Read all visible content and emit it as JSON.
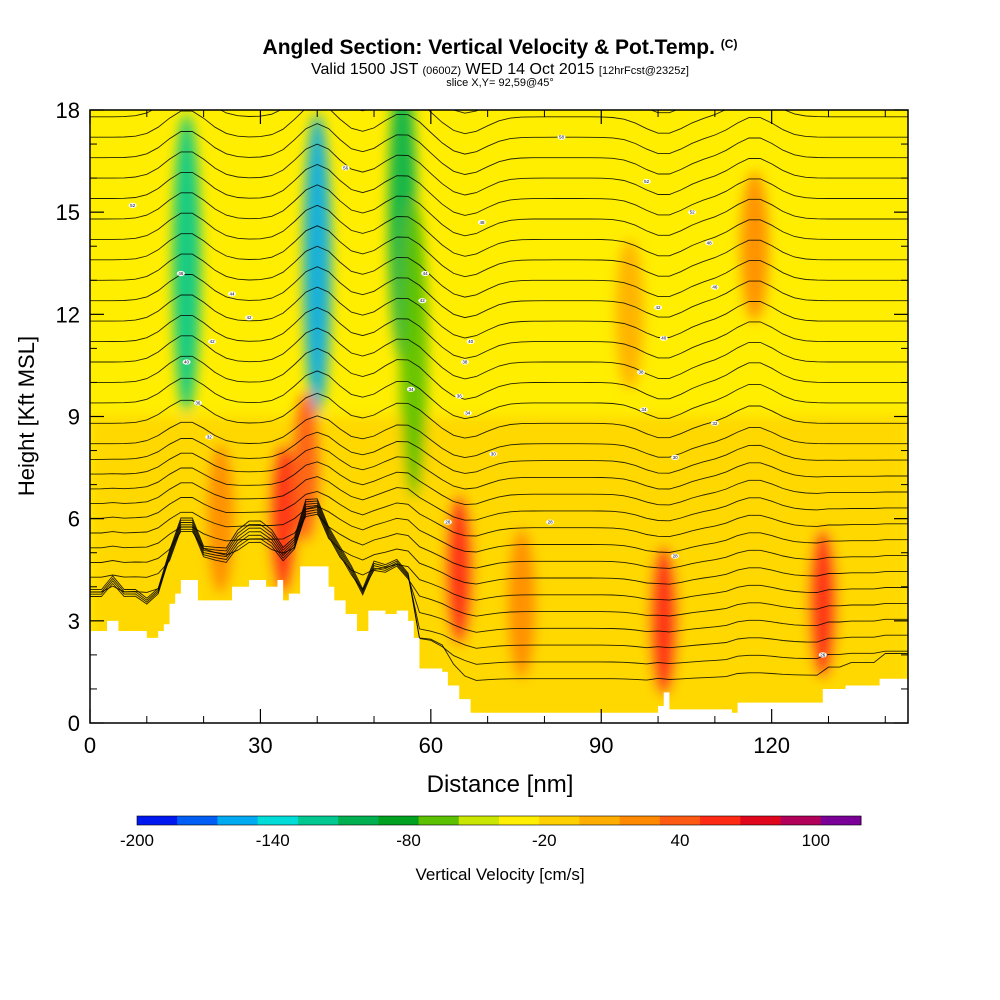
{
  "header": {
    "title": "Angled Section: Vertical Velocity & Pot.Temp.",
    "title_units": "(C)",
    "valid_a": "Valid 1500 JST",
    "valid_z": "(0600Z)",
    "valid_b": "WED 14 Oct 2015",
    "forecast": "[12hrFcst@2325z]",
    "slice": "slice X,Y= 92,59@45°"
  },
  "chart_data": {
    "type": "heatmap",
    "title": "Angled Section: Vertical Velocity & Pot.Temp.",
    "xlabel": "Distance [nm]",
    "ylabel": "Height [Kft MSL]",
    "xlim": [
      0,
      144
    ],
    "ylim": [
      0,
      18
    ],
    "x_ticks": [
      "0",
      "30",
      "60",
      "90",
      "120"
    ],
    "x_tick_values": [
      0,
      30,
      60,
      90,
      120
    ],
    "y_ticks": [
      "0",
      "3",
      "6",
      "9",
      "12",
      "15",
      "18"
    ],
    "y_tick_values": [
      0,
      3,
      6,
      9,
      12,
      15,
      18
    ],
    "terrain_kft": [
      [
        0,
        2.7
      ],
      [
        3,
        3.0
      ],
      [
        5,
        2.7
      ],
      [
        8,
        2.7
      ],
      [
        10,
        2.5
      ],
      [
        12,
        2.7
      ],
      [
        13,
        2.9
      ],
      [
        14,
        3.5
      ],
      [
        15,
        3.8
      ],
      [
        16,
        4.2
      ],
      [
        18,
        4.2
      ],
      [
        19,
        3.6
      ],
      [
        23,
        3.6
      ],
      [
        25,
        4.0
      ],
      [
        28,
        4.2
      ],
      [
        31,
        4.0
      ],
      [
        33,
        4.2
      ],
      [
        34,
        3.6
      ],
      [
        35,
        3.8
      ],
      [
        37,
        4.6
      ],
      [
        41,
        4.6
      ],
      [
        42,
        4.0
      ],
      [
        43,
        3.6
      ],
      [
        45,
        3.2
      ],
      [
        47,
        2.7
      ],
      [
        49,
        3.3
      ],
      [
        52,
        3.2
      ],
      [
        54,
        3.3
      ],
      [
        56,
        3.0
      ],
      [
        57,
        2.5
      ],
      [
        58,
        1.6
      ],
      [
        62,
        1.5
      ],
      [
        63,
        1.1
      ],
      [
        65,
        0.7
      ],
      [
        67,
        0.3
      ],
      [
        85,
        0.3
      ],
      [
        99,
        0.3
      ],
      [
        100,
        0.5
      ],
      [
        101,
        0.9
      ],
      [
        102,
        0.4
      ],
      [
        113,
        0.3
      ],
      [
        114,
        0.6
      ],
      [
        128,
        0.6
      ],
      [
        129,
        1.0
      ],
      [
        133,
        1.1
      ],
      [
        138,
        1.1
      ],
      [
        139,
        1.3
      ],
      [
        144,
        1.3
      ]
    ],
    "w_cells": [
      {
        "x": 17,
        "y": 13.5,
        "w": -110
      },
      {
        "x": 40,
        "y": 13.5,
        "w": -160
      },
      {
        "x": 55,
        "y": 15.0,
        "w": -90
      },
      {
        "x": 57,
        "y": 11.0,
        "w": -60
      },
      {
        "x": 34,
        "y": 6.0,
        "w": 80
      },
      {
        "x": 38,
        "y": 7.5,
        "w": 60
      },
      {
        "x": 23,
        "y": 6.0,
        "w": 50
      },
      {
        "x": 65,
        "y": 4.5,
        "w": 80
      },
      {
        "x": 101,
        "y": 3.0,
        "w": 80
      },
      {
        "x": 129,
        "y": 3.5,
        "w": 80
      },
      {
        "x": 76,
        "y": 3.5,
        "w": 40
      },
      {
        "x": 117,
        "y": 14.0,
        "w": 40
      },
      {
        "x": 95,
        "y": 12.0,
        "w": 30
      }
    ],
    "legend": {
      "label": "Vertical Velocity [cm/s]",
      "min": -200,
      "max": 120,
      "step": 20,
      "labels": [
        "-200",
        "-140",
        "-80",
        "-20",
        "40",
        "100"
      ],
      "label_values": [
        -200,
        -140,
        -80,
        -20,
        40,
        100
      ],
      "colors": [
        "#0018f0",
        "#005ef5",
        "#00aaf0",
        "#00dcd8",
        "#00c890",
        "#00b050",
        "#00a020",
        "#5ac000",
        "#c8e600",
        "#ffee00",
        "#ffd000",
        "#ffae00",
        "#ff8a00",
        "#ff5a14",
        "#ff2a14",
        "#e0061c",
        "#b0005a",
        "#7a0098"
      ]
    },
    "theta_labels": [
      {
        "x": 7.5,
        "y": 15.2,
        "text": "52"
      },
      {
        "x": 16,
        "y": 13.2,
        "text": "46"
      },
      {
        "x": 17,
        "y": 10.6,
        "text": "40"
      },
      {
        "x": 19,
        "y": 9.4,
        "text": "36"
      },
      {
        "x": 21,
        "y": 8.4,
        "text": "32"
      },
      {
        "x": 21.5,
        "y": 11.2,
        "text": "42"
      },
      {
        "x": 25,
        "y": 12.6,
        "text": "44"
      },
      {
        "x": 28,
        "y": 11.9,
        "text": "42"
      },
      {
        "x": 45,
        "y": 16.3,
        "text": "56"
      },
      {
        "x": 56.5,
        "y": 9.8,
        "text": "34"
      },
      {
        "x": 58.5,
        "y": 12.4,
        "text": "42"
      },
      {
        "x": 59,
        "y": 13.2,
        "text": "44"
      },
      {
        "x": 63,
        "y": 5.9,
        "text": "28"
      },
      {
        "x": 65,
        "y": 9.6,
        "text": "36"
      },
      {
        "x": 66,
        "y": 10.6,
        "text": "38"
      },
      {
        "x": 66.5,
        "y": 9.1,
        "text": "34"
      },
      {
        "x": 67,
        "y": 11.2,
        "text": "40"
      },
      {
        "x": 69,
        "y": 14.7,
        "text": "48"
      },
      {
        "x": 71,
        "y": 7.9,
        "text": "30"
      },
      {
        "x": 81,
        "y": 5.9,
        "text": "28"
      },
      {
        "x": 83,
        "y": 17.2,
        "text": "58"
      },
      {
        "x": 97,
        "y": 10.3,
        "text": "38"
      },
      {
        "x": 97.5,
        "y": 9.2,
        "text": "34"
      },
      {
        "x": 98,
        "y": 15.9,
        "text": "52"
      },
      {
        "x": 100,
        "y": 12.2,
        "text": "42"
      },
      {
        "x": 101,
        "y": 11.3,
        "text": "40"
      },
      {
        "x": 103,
        "y": 7.8,
        "text": "30"
      },
      {
        "x": 103,
        "y": 4.9,
        "text": "28"
      },
      {
        "x": 106,
        "y": 15.0,
        "text": "52"
      },
      {
        "x": 109,
        "y": 14.1,
        "text": "48"
      },
      {
        "x": 110,
        "y": 12.8,
        "text": "46"
      },
      {
        "x": 110,
        "y": 8.8,
        "text": "32"
      },
      {
        "x": 129,
        "y": 2.0,
        "text": "26"
      }
    ]
  }
}
